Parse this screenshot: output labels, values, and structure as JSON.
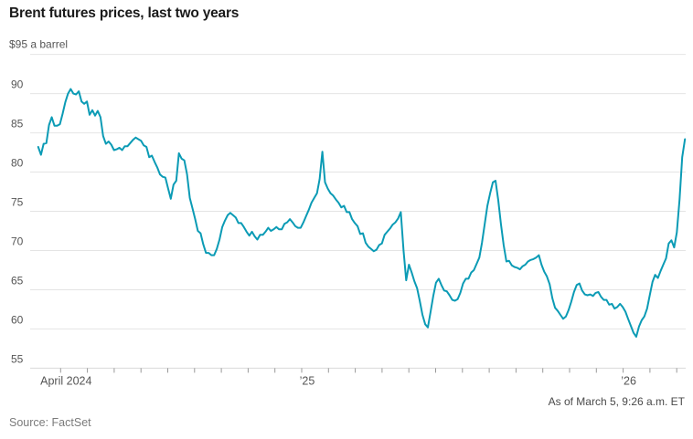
{
  "title": "Brent futures prices, last two years",
  "footnote": "As of March 5, 9:26 a.m. ET",
  "source": "Source: FactSet",
  "y_axis": {
    "unit_label": "$95 a barrel",
    "tick_values": [
      90,
      85,
      80,
      75,
      70,
      65,
      60,
      55
    ],
    "min": 55,
    "max": 95
  },
  "x_axis": {
    "month_ticks_total": 24,
    "labels": [
      {
        "text": "April 2024",
        "month": 1
      },
      {
        "text": "’25",
        "month": 10
      },
      {
        "text": "’26",
        "month": 22
      }
    ]
  },
  "colors": {
    "line": "#0b9bb5",
    "grid": "#e4e4e4",
    "axis": "#d9d9d9",
    "tick": "#999999",
    "label": "#555555",
    "title": "#1a1a1a"
  },
  "chart_data": {
    "type": "line",
    "title": "Brent futures prices, last two years",
    "ylabel": "$ a barrel",
    "ylim": [
      55,
      95
    ],
    "grid": "horizontal",
    "legend": "none",
    "x_start_date": "2024-03-06",
    "x_end_date": "2026-03-05",
    "points_evenly_spaced": true,
    "series": [
      {
        "name": "Brent crude futures price ($ a barrel)",
        "values": [
          83.2,
          82.2,
          83.6,
          83.7,
          86.0,
          87.0,
          85.9,
          85.9,
          86.1,
          87.4,
          88.9,
          90.0,
          90.6,
          90.0,
          89.9,
          90.3,
          89.0,
          88.7,
          89.0,
          87.3,
          87.9,
          87.2,
          87.8,
          87.0,
          84.6,
          83.6,
          83.9,
          83.5,
          82.8,
          82.9,
          83.1,
          82.8,
          83.3,
          83.3,
          83.7,
          84.1,
          84.4,
          84.2,
          84.0,
          83.4,
          83.2,
          81.9,
          82.1,
          81.3,
          80.6,
          79.7,
          79.4,
          79.3,
          77.9,
          76.6,
          78.4,
          78.9,
          82.4,
          81.7,
          81.5,
          79.7,
          76.7,
          75.4,
          74.0,
          72.5,
          72.2,
          70.8,
          69.7,
          69.7,
          69.4,
          69.4,
          70.2,
          71.4,
          73.0,
          73.8,
          74.5,
          74.8,
          74.5,
          74.2,
          73.5,
          73.5,
          73.0,
          72.4,
          71.9,
          72.4,
          71.8,
          71.4,
          72.0,
          72.0,
          72.4,
          72.9,
          72.5,
          72.7,
          73.0,
          72.7,
          72.7,
          73.4,
          73.6,
          74.0,
          73.6,
          73.1,
          72.9,
          72.9,
          73.6,
          74.4,
          75.2,
          76.1,
          76.7,
          77.3,
          79.1,
          82.6,
          78.7,
          77.9,
          77.3,
          77.0,
          76.5,
          76.1,
          75.5,
          75.7,
          74.9,
          74.9,
          74.0,
          73.5,
          73.1,
          72.1,
          72.2,
          71.0,
          70.5,
          70.2,
          69.9,
          70.1,
          70.7,
          70.9,
          72.0,
          72.4,
          72.8,
          73.3,
          73.6,
          74.1,
          74.9,
          70.0,
          66.2,
          68.2,
          67.2,
          66.1,
          65.2,
          63.6,
          61.8,
          60.6,
          60.2,
          62.2,
          64.2,
          65.9,
          66.4,
          65.6,
          64.9,
          64.8,
          64.3,
          63.7,
          63.6,
          63.8,
          64.6,
          65.8,
          66.4,
          66.4,
          67.2,
          67.5,
          68.3,
          69.1,
          71.0,
          73.4,
          75.7,
          77.3,
          78.7,
          78.9,
          76.4,
          73.4,
          70.7,
          68.6,
          68.7,
          68.1,
          67.9,
          67.8,
          67.6,
          68.0,
          68.2,
          68.6,
          68.8,
          68.9,
          69.1,
          69.4,
          68.2,
          67.3,
          66.7,
          65.7,
          63.9,
          62.7,
          62.3,
          61.8,
          61.3,
          61.6,
          62.4,
          63.5,
          64.7,
          65.6,
          65.8,
          64.9,
          64.4,
          64.3,
          64.4,
          64.2,
          64.6,
          64.7,
          64.1,
          63.7,
          63.7,
          63.1,
          63.2,
          62.6,
          62.8,
          63.2,
          62.8,
          62.2,
          61.3,
          60.4,
          59.5,
          59.0,
          60.3,
          61.1,
          61.6,
          62.6,
          64.3,
          66.0,
          66.9,
          66.5,
          67.4,
          68.2,
          69.0,
          70.9,
          71.3,
          70.4,
          72.3,
          76.5,
          81.9,
          84.2
        ]
      }
    ]
  }
}
